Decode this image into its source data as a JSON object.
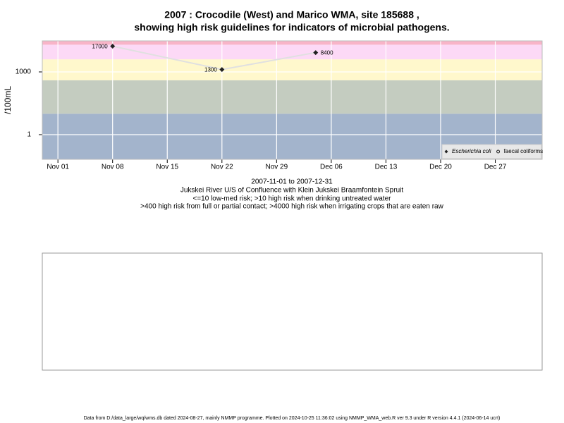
{
  "chart_data": {
    "type": "line",
    "title": "2007 : Crocodile (West) and Marico WMA, site 185688 ,",
    "subtitle": "showing high risk guidelines for indicators of microbial pathogens.",
    "ylabel": "/100mL",
    "log_y": true,
    "grid": true,
    "legend": "lower right",
    "x": [
      "2007-11-08",
      "2007-11-22",
      "2007-12-04"
    ],
    "series": [
      {
        "name": "Escherichia coli",
        "color": "#222222",
        "line_color": "#e0e0e0",
        "marker": "diamond",
        "values": [
          17000,
          1300,
          8400
        ]
      },
      {
        "name": "faecal coliforms",
        "color": "#222222",
        "marker": "circle",
        "values": [
          null,
          null,
          null
        ]
      }
    ],
    "xlim": [
      "2007-10-30",
      "2008-01-02"
    ],
    "xticks": [
      {
        "value": "2007-11-01",
        "label": "Nov 01"
      },
      {
        "value": "2007-11-08",
        "label": "Nov 08"
      },
      {
        "value": "2007-11-15",
        "label": "Nov 15"
      },
      {
        "value": "2007-11-22",
        "label": "Nov 22"
      },
      {
        "value": "2007-11-29",
        "label": "Nov 29"
      },
      {
        "value": "2007-12-06",
        "label": "Dec 06"
      },
      {
        "value": "2007-12-13",
        "label": "Dec 13"
      },
      {
        "value": "2007-12-20",
        "label": "Dec 20"
      },
      {
        "value": "2007-12-27",
        "label": "Dec 27"
      }
    ],
    "ylim": [
      0.066,
      30400
    ],
    "yticks": [
      1,
      1000
    ],
    "bands": [
      {
        "max": 10,
        "color": "#a3b4cc"
      },
      {
        "max": 400,
        "color": "#c4ccc0"
      },
      {
        "max": 4000,
        "color": "#fff8cc"
      },
      {
        "max": 20000,
        "color": "#fcd9f6"
      },
      {
        "color": "#f8b4c8"
      }
    ],
    "notes": [
      "2007-11-01 to 2007-12-31",
      "Jukskei River U/S of Confluence with Klein Jukskei Braamfontein Spruit",
      "<=10 low-med risk; >10 high risk when drinking untreated water",
      ">400 high risk from full or partial contact; >4000 high risk when irrigating crops that are eaten raw"
    ],
    "footer": "Data from D:/data_large/wq/wms.db dated 2024-08-27, mainly NMMP programme. Plotted on 2024-10-25 11:36:02 using NMMP_WMA_web.R ver 9.3 under R version 4.4.1 (2024-06-14 ucrt)"
  }
}
